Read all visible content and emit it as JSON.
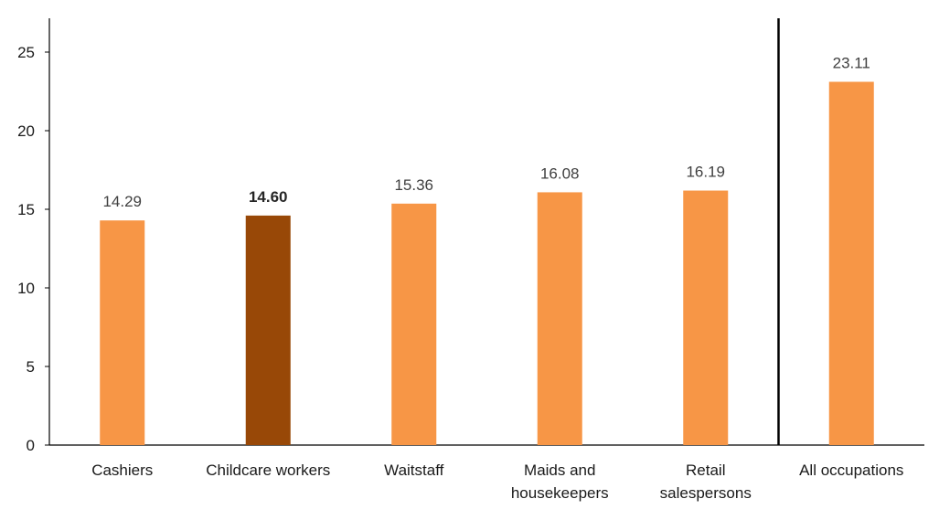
{
  "chart_data": {
    "type": "bar",
    "categories": [
      [
        "Cashiers"
      ],
      [
        "Childcare workers"
      ],
      [
        "Waitstaff"
      ],
      [
        "Maids and",
        "housekeepers"
      ],
      [
        "Retail",
        "salespersons"
      ],
      [
        "All occupations"
      ]
    ],
    "values": [
      14.29,
      14.6,
      15.36,
      16.08,
      16.19,
      23.11
    ],
    "value_labels": [
      "14.29",
      "14.60",
      "15.36",
      "16.08",
      "16.19",
      "23.11"
    ],
    "highlight_index": 1,
    "ylim": [
      0,
      25
    ],
    "yticks": [
      "0",
      "5",
      "10",
      "15",
      "20",
      "25"
    ],
    "separator_before_index": 5,
    "colors": {
      "bar": "#F79646",
      "highlight": "#984807",
      "axis": "#000000"
    },
    "grid": false
  }
}
